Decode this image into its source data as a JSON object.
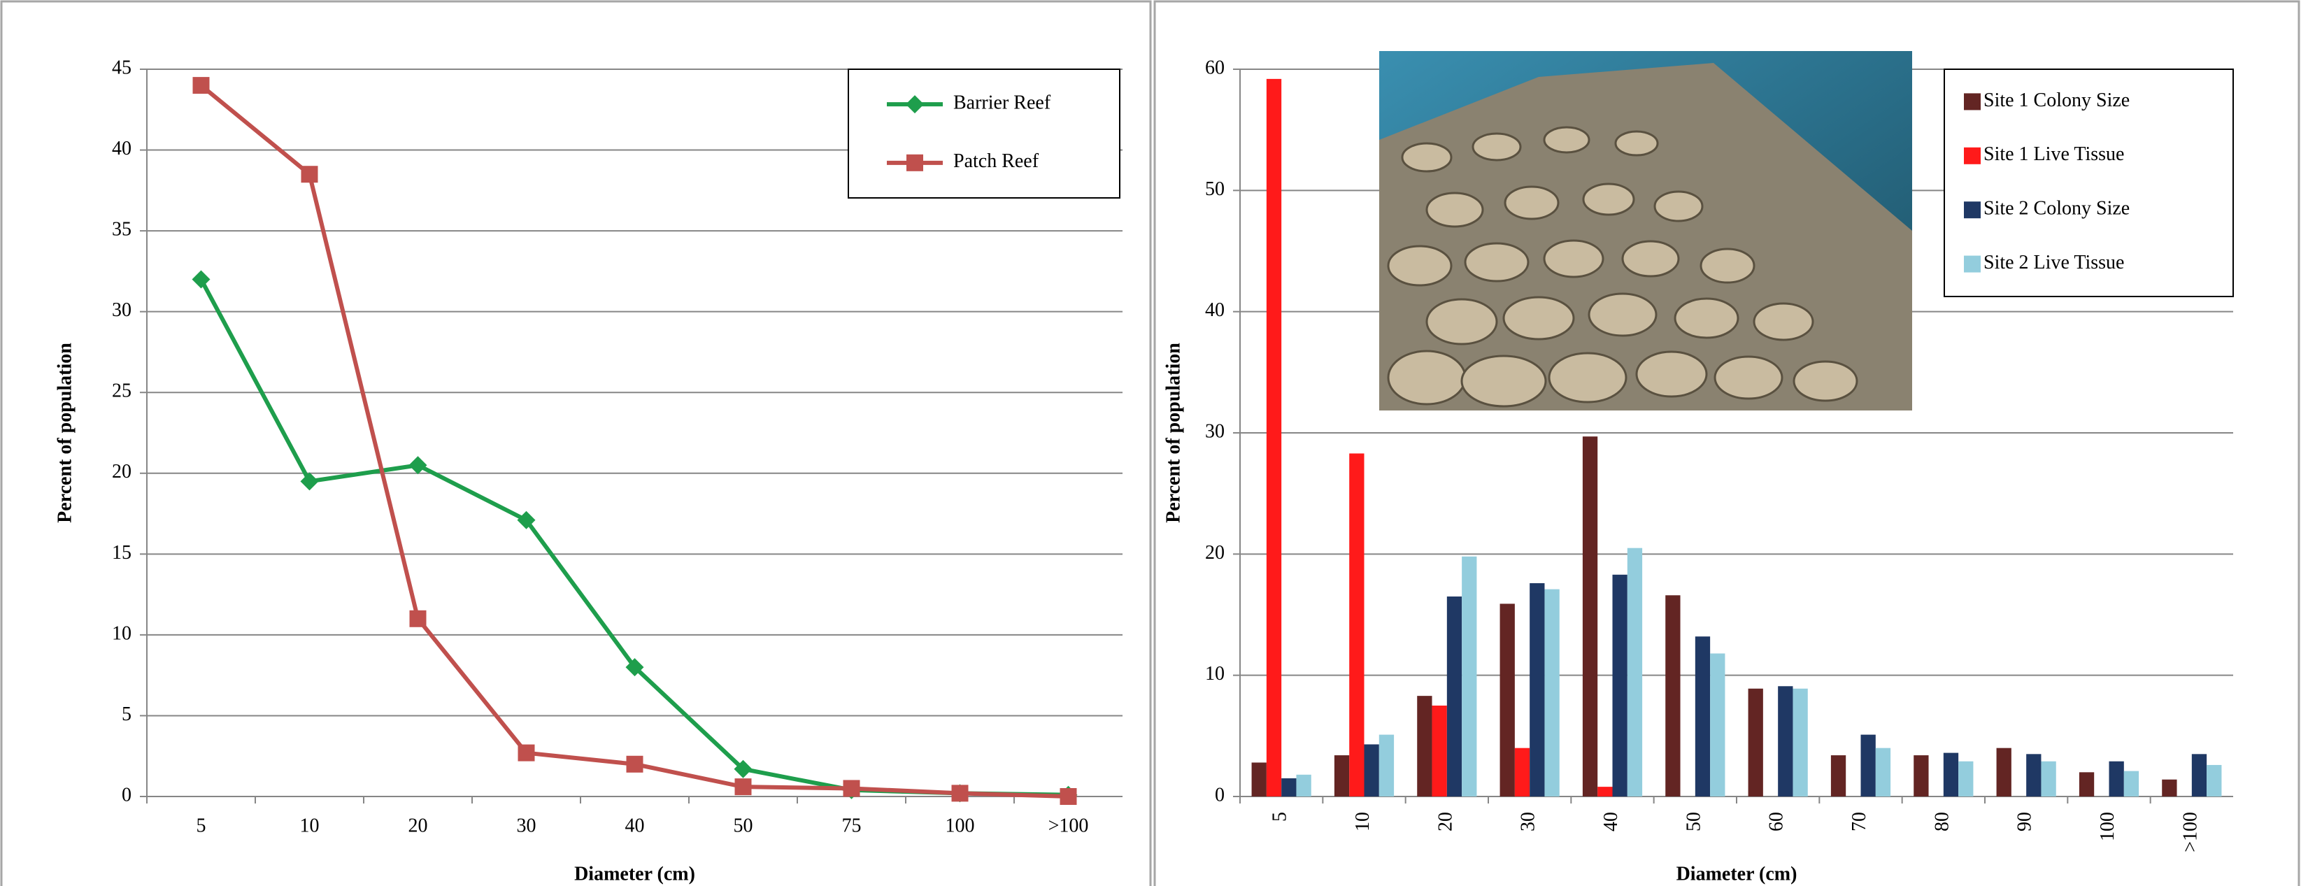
{
  "chart_data": [
    {
      "type": "line",
      "x_label": "Diameter (cm)",
      "y_label": "Percent of population",
      "categories": [
        "5",
        "10",
        "20",
        "30",
        "40",
        "50",
        "75",
        "100",
        ">100"
      ],
      "series": [
        {
          "name": "Barrier Reef",
          "color": "#1e9e4c",
          "marker": "diamond",
          "values": [
            32,
            19.5,
            20.5,
            17.1,
            8,
            1.7,
            0.4,
            0.2,
            0.1
          ]
        },
        {
          "name": "Patch Reef",
          "color": "#c0504d",
          "marker": "square",
          "values": [
            44,
            38.5,
            11,
            2.7,
            2,
            0.6,
            0.5,
            0.2,
            0
          ]
        }
      ],
      "ylim": [
        0,
        45
      ],
      "yticks": [
        0,
        5,
        10,
        15,
        20,
        25,
        30,
        35,
        40,
        45
      ],
      "grid": true,
      "legend": "top-right"
    },
    {
      "type": "bar",
      "x_label": "Diameter (cm)",
      "y_label": "Percent of population",
      "categories": [
        "5",
        "10",
        "20",
        "30",
        "40",
        "50",
        "60",
        "70",
        "80",
        "90",
        "100",
        ">100"
      ],
      "series": [
        {
          "name": "Site 1 Colony Size",
          "color": "#632523",
          "values": [
            2.8,
            3.4,
            8.3,
            15.9,
            29.7,
            16.6,
            8.9,
            3.4,
            3.4,
            4.0,
            2.0,
            1.4
          ]
        },
        {
          "name": "Site 1 Live Tissue",
          "color": "#ff1a1a",
          "values": [
            59.2,
            28.3,
            7.5,
            4.0,
            0.8,
            null,
            null,
            null,
            null,
            null,
            null,
            null
          ]
        },
        {
          "name": "Site 2 Colony Size",
          "color": "#1f3864",
          "values": [
            1.5,
            4.3,
            16.5,
            17.6,
            18.3,
            13.2,
            9.1,
            5.1,
            3.6,
            3.5,
            2.9,
            3.5
          ]
        },
        {
          "name": "Site 2 Live Tissue",
          "color": "#93cddd",
          "values": [
            1.8,
            5.1,
            19.8,
            17.1,
            20.5,
            11.8,
            8.9,
            4.0,
            2.9,
            2.9,
            2.1,
            2.6
          ]
        }
      ],
      "ylim": [
        0,
        60
      ],
      "yticks": [
        0,
        10,
        20,
        30,
        40,
        50,
        60
      ],
      "grid": true,
      "legend": "top-right",
      "rotate_x_labels": true
    }
  ]
}
